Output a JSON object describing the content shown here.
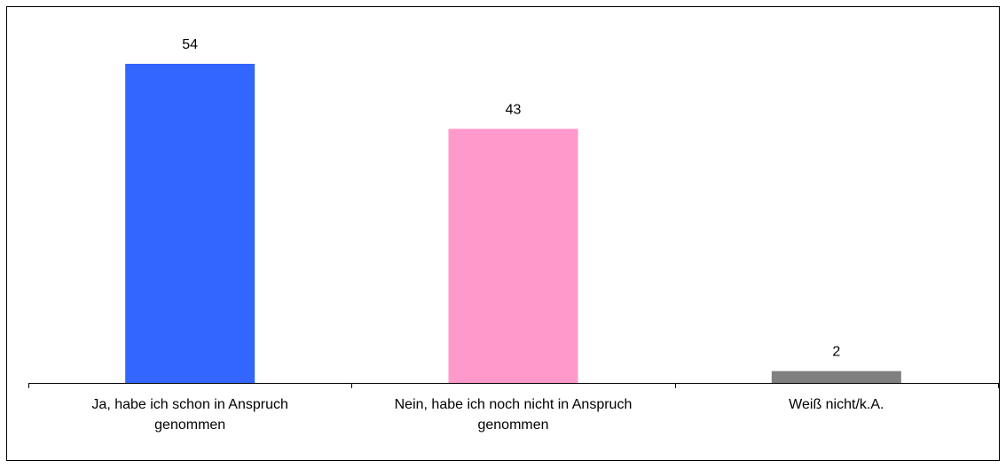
{
  "chart_data": {
    "type": "bar",
    "categories": [
      "Ja, habe ich schon in Anspruch\ngenommen",
      "Nein, habe ich noch nicht in Anspruch\ngenommen",
      "Weiß nicht/k.A."
    ],
    "values": [
      54,
      43,
      2
    ],
    "colors": [
      "#3366ff",
      "#ff99cc",
      "#808080"
    ],
    "ylim": [
      0,
      60
    ]
  }
}
